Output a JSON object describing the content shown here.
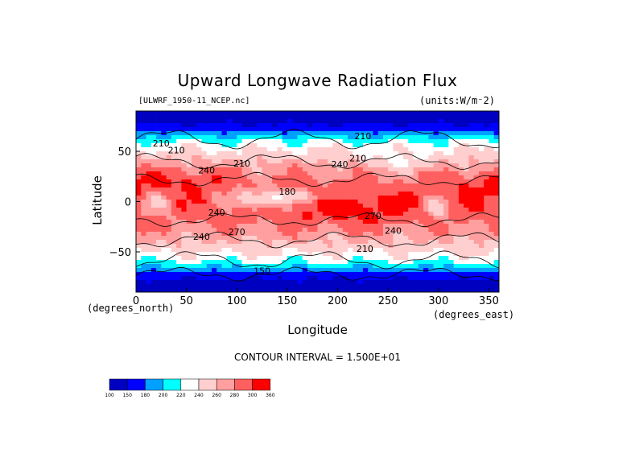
{
  "title": "Upward Longwave Radiation Flux",
  "file_label": "[ULWRF_1950-11_NCEP.nc]",
  "units_label": "(units:W/m⁻2)",
  "contour_interval": "CONTOUR INTERVAL = 1.500E+01",
  "chart_data": {
    "type": "heatmap",
    "title": "Upward Longwave Radiation Flux",
    "xlabel": "Longitude",
    "ylabel": "Latitude",
    "x_unit": "(degrees_east)",
    "y_unit": "(degrees_north)",
    "xlim": [
      0,
      360
    ],
    "ylim": [
      -90,
      90
    ],
    "x_ticks": [
      0,
      50,
      100,
      150,
      200,
      250,
      300,
      350
    ],
    "x_tick_labels": [
      "0",
      "50",
      "100",
      "150",
      "200",
      "250",
      "300",
      "350"
    ],
    "y_ticks": [
      50,
      0,
      -50
    ],
    "y_tick_labels": [
      "50",
      "0",
      "−50"
    ],
    "colorbar": {
      "levels": [
        100,
        150,
        180,
        200,
        220,
        240,
        260,
        280,
        300,
        360
      ],
      "level_labels": [
        "100",
        "150",
        "180",
        "200",
        "220",
        "240",
        "260",
        "280",
        "300",
        "360"
      ],
      "colors": [
        "#0000c0",
        "#0000ff",
        "#00a0ff",
        "#00ffff",
        "#ffffff",
        "#ffcfcf",
        "#ff9f9f",
        "#ff5f5f",
        "#ff0000"
      ]
    },
    "contour_labels": [
      {
        "value": "210",
        "lon": 40,
        "lat": 48
      },
      {
        "value": "240",
        "lon": 70,
        "lat": 28
      },
      {
        "value": "210",
        "lon": 105,
        "lat": 35
      },
      {
        "value": "180",
        "lon": 150,
        "lat": 7
      },
      {
        "value": "240",
        "lon": 80,
        "lat": -14
      },
      {
        "value": "270",
        "lon": 100,
        "lat": -33
      },
      {
        "value": "240",
        "lon": 65,
        "lat": -38
      },
      {
        "value": "240",
        "lon": 202,
        "lat": 34
      },
      {
        "value": "210",
        "lon": 220,
        "lat": 40
      },
      {
        "value": "210",
        "lon": 225,
        "lat": 62
      },
      {
        "value": "210",
        "lon": 227,
        "lat": -50
      },
      {
        "value": "270",
        "lon": 235,
        "lat": -17
      },
      {
        "value": "240",
        "lon": 255,
        "lat": -32
      },
      {
        "value": "150",
        "lon": 125,
        "lat": -72
      },
      {
        "value": "210",
        "lon": 25,
        "lat": 55
      }
    ]
  }
}
